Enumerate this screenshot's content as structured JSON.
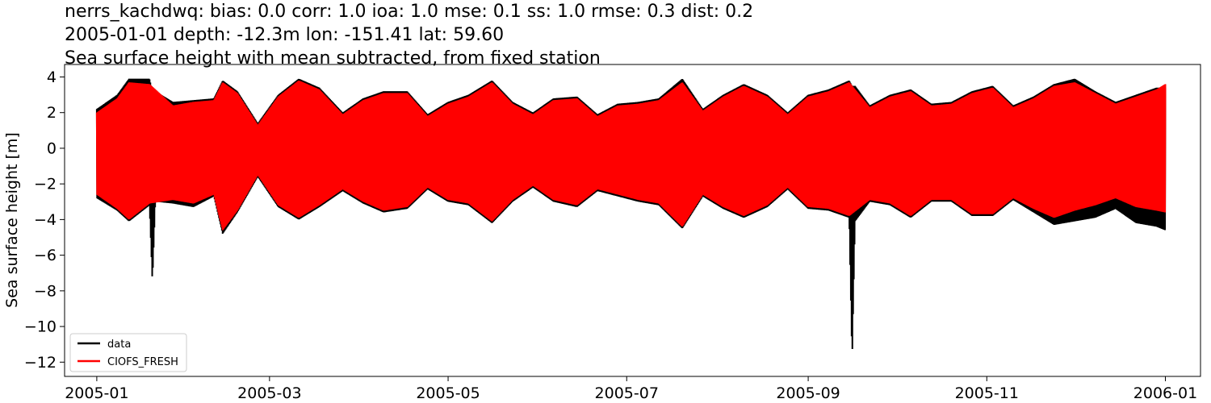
{
  "chart_data": {
    "type": "line",
    "title_lines": [
      "nerrs_kachdwq: bias: 0.0  corr: 1.0  ioa: 1.0  mse: 0.1  ss: 1.0  rmse: 0.3  dist: 0.2",
      "2005-01-01 depth: -12.3m lon: -151.41 lat: 59.60",
      "Sea surface height with mean subtracted, from fixed station"
    ],
    "xlabel": "",
    "ylabel": "Sea surface height [m]",
    "xlim": [
      "2004-12-21",
      "2006-01-13"
    ],
    "ylim": [
      -12.8,
      4.7
    ],
    "x_ticks": [
      "2005-01",
      "2005-03",
      "2005-05",
      "2005-07",
      "2005-09",
      "2005-11",
      "2006-01"
    ],
    "y_ticks": [
      4,
      2,
      0,
      -2,
      -4,
      -6,
      -8,
      -10,
      -12
    ],
    "y_tick_labels": [
      "4",
      "2",
      "0",
      "−2",
      "−4",
      "−6",
      "−8",
      "−10",
      "−12"
    ],
    "grid": false,
    "legend_position": "lower-left",
    "colors": {
      "data": "#000000",
      "model": "#ff0000"
    },
    "series": [
      {
        "name": "data",
        "color": "#000000",
        "x": [
          "2005-01-01",
          "2005-01-08",
          "2005-01-12",
          "2005-01-19",
          "2005-01-20",
          "2005-01-21",
          "2005-01-27",
          "2005-02-03",
          "2005-02-10",
          "2005-02-13",
          "2005-02-18",
          "2005-02-25",
          "2005-03-04",
          "2005-03-11",
          "2005-03-18",
          "2005-03-26",
          "2005-04-02",
          "2005-04-09",
          "2005-04-17",
          "2005-04-24",
          "2005-05-01",
          "2005-05-08",
          "2005-05-16",
          "2005-05-23",
          "2005-05-30",
          "2005-06-06",
          "2005-06-14",
          "2005-06-21",
          "2005-06-28",
          "2005-07-05",
          "2005-07-12",
          "2005-07-20",
          "2005-07-27",
          "2005-08-03",
          "2005-08-10",
          "2005-08-18",
          "2005-08-25",
          "2005-09-01",
          "2005-09-08",
          "2005-09-15",
          "2005-09-16",
          "2005-09-17",
          "2005-09-22",
          "2005-09-29",
          "2005-10-06",
          "2005-10-13",
          "2005-10-20",
          "2005-10-27",
          "2005-11-03",
          "2005-11-10",
          "2005-11-17",
          "2005-11-24",
          "2005-12-01",
          "2005-12-08",
          "2005-12-15",
          "2005-12-22",
          "2005-12-29",
          "2006-01-01"
        ],
        "upper": [
          2.2,
          3.0,
          3.9,
          3.9,
          3.2,
          3.2,
          2.6,
          2.7,
          2.8,
          3.8,
          3.2,
          1.4,
          3.0,
          3.9,
          3.4,
          2.0,
          2.8,
          3.2,
          3.2,
          1.9,
          2.6,
          3.0,
          3.8,
          2.6,
          2.0,
          2.8,
          2.9,
          1.9,
          2.5,
          2.6,
          2.8,
          3.9,
          2.2,
          3.0,
          3.6,
          3.0,
          2.0,
          3.0,
          3.3,
          3.8,
          3.5,
          3.5,
          2.4,
          3.0,
          3.3,
          2.5,
          2.6,
          3.2,
          3.5,
          2.4,
          2.9,
          3.6,
          3.9,
          3.2,
          2.6,
          3.0,
          3.4,
          3.4
        ],
        "lower": [
          -2.8,
          -3.5,
          -4.1,
          -3.2,
          -7.5,
          -3.0,
          -3.1,
          -3.3,
          -2.7,
          -4.8,
          -3.6,
          -1.6,
          -3.3,
          -4.0,
          -3.3,
          -2.4,
          -3.1,
          -3.6,
          -3.4,
          -2.3,
          -3.0,
          -3.2,
          -4.2,
          -3.0,
          -2.2,
          -3.0,
          -3.3,
          -2.4,
          -2.7,
          -3.0,
          -3.2,
          -4.5,
          -2.7,
          -3.4,
          -3.9,
          -3.3,
          -2.3,
          -3.4,
          -3.5,
          -3.9,
          -11.9,
          -4.1,
          -3.0,
          -3.2,
          -3.9,
          -3.0,
          -3.0,
          -3.8,
          -3.8,
          -2.9,
          -3.6,
          -4.3,
          -4.1,
          -3.9,
          -3.4,
          -4.2,
          -4.4,
          -4.6
        ]
      },
      {
        "name": "CIOFS_FRESH",
        "color": "#ff0000",
        "x": [
          "2005-01-01",
          "2005-01-08",
          "2005-01-12",
          "2005-01-19",
          "2005-01-27",
          "2005-02-03",
          "2005-02-10",
          "2005-02-13",
          "2005-02-18",
          "2005-02-25",
          "2005-03-04",
          "2005-03-11",
          "2005-03-18",
          "2005-03-26",
          "2005-04-02",
          "2005-04-09",
          "2005-04-17",
          "2005-04-24",
          "2005-05-01",
          "2005-05-08",
          "2005-05-16",
          "2005-05-23",
          "2005-05-30",
          "2005-06-06",
          "2005-06-14",
          "2005-06-21",
          "2005-06-28",
          "2005-07-05",
          "2005-07-12",
          "2005-07-20",
          "2005-07-27",
          "2005-08-03",
          "2005-08-10",
          "2005-08-18",
          "2005-08-25",
          "2005-09-01",
          "2005-09-08",
          "2005-09-15",
          "2005-09-22",
          "2005-09-29",
          "2005-10-06",
          "2005-10-13",
          "2005-10-20",
          "2005-10-27",
          "2005-11-03",
          "2005-11-10",
          "2005-11-17",
          "2005-11-24",
          "2005-12-01",
          "2005-12-08",
          "2005-12-15",
          "2005-12-22",
          "2005-12-29",
          "2006-01-01"
        ],
        "upper": [
          2.0,
          2.8,
          3.7,
          3.6,
          2.4,
          2.6,
          2.7,
          3.7,
          3.1,
          1.3,
          2.9,
          3.8,
          3.3,
          1.9,
          2.7,
          3.1,
          3.1,
          1.8,
          2.5,
          2.9,
          3.7,
          2.5,
          1.9,
          2.7,
          2.8,
          1.8,
          2.4,
          2.5,
          2.7,
          3.7,
          2.1,
          2.9,
          3.5,
          2.9,
          1.9,
          2.9,
          3.2,
          3.7,
          2.3,
          2.9,
          3.2,
          2.4,
          2.5,
          3.1,
          3.4,
          2.3,
          2.8,
          3.5,
          3.7,
          3.1,
          2.5,
          2.9,
          3.3,
          3.6
        ],
        "lower": [
          -2.6,
          -3.4,
          -4.0,
          -3.1,
          -2.9,
          -3.1,
          -2.6,
          -4.6,
          -3.5,
          -1.5,
          -3.2,
          -3.9,
          -3.2,
          -2.3,
          -3.0,
          -3.5,
          -3.3,
          -2.2,
          -2.9,
          -3.1,
          -4.1,
          -2.9,
          -2.1,
          -2.9,
          -3.2,
          -2.3,
          -2.6,
          -2.9,
          -3.1,
          -4.4,
          -2.6,
          -3.3,
          -3.8,
          -3.2,
          -2.2,
          -3.3,
          -3.4,
          -3.8,
          -2.9,
          -3.1,
          -3.8,
          -2.9,
          -2.9,
          -3.7,
          -3.7,
          -2.8,
          -3.4,
          -3.9,
          -3.5,
          -3.2,
          -2.8,
          -3.3,
          -3.5,
          -3.6
        ]
      }
    ]
  }
}
